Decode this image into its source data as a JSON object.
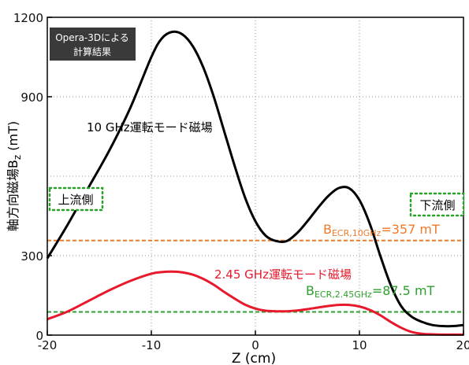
{
  "chart_data": {
    "type": "line",
    "xlabel": "Z (cm)",
    "ylabel": "軸方向磁場B",
    "ylabel_sub": "z",
    "ylabel_unit": " (mT)",
    "xlim": [
      -20,
      20
    ],
    "ylim": [
      0,
      1200
    ],
    "xticks": [
      "-20",
      "-10",
      "0",
      "10",
      "20"
    ],
    "yticks": [
      "0",
      "300",
      "900",
      "1200"
    ],
    "grid": true,
    "series": [
      {
        "name": "10 GHz運転モード磁場",
        "color": "#000000",
        "x": [
          -20,
          -18,
          -16,
          -14,
          -12,
          -10,
          -9,
          -8,
          -7,
          -6,
          -5,
          -4,
          -3,
          -2,
          -1,
          0,
          1,
          2,
          3,
          4,
          5,
          6,
          7,
          8,
          9,
          10,
          11,
          12,
          13,
          14,
          15,
          16,
          17,
          18,
          19,
          20
        ],
        "y": [
          290,
          420,
          560,
          700,
          860,
          1050,
          1120,
          1145,
          1135,
          1090,
          1010,
          900,
          770,
          640,
          520,
          430,
          375,
          355,
          355,
          385,
          430,
          480,
          525,
          555,
          555,
          510,
          420,
          300,
          190,
          110,
          70,
          50,
          38,
          34,
          34,
          38
        ]
      },
      {
        "name": "2.45 GHz運転モード磁場",
        "color": "#e8192c",
        "x": [
          -20,
          -18,
          -16,
          -14,
          -12,
          -10,
          -9,
          -8,
          -7,
          -6,
          -5,
          -4,
          -3,
          -2,
          -1,
          0,
          1,
          2,
          3,
          4,
          5,
          6,
          7,
          8,
          9,
          10,
          11,
          12,
          13,
          14,
          15,
          16,
          17,
          18,
          19,
          20
        ],
        "y": [
          60,
          90,
          130,
          170,
          205,
          232,
          238,
          240,
          237,
          228,
          212,
          190,
          163,
          138,
          115,
          100,
          92,
          90,
          90,
          93,
          98,
          104,
          110,
          114,
          114,
          108,
          95,
          75,
          50,
          28,
          12,
          5,
          3,
          2,
          2,
          2
        ]
      }
    ],
    "reference_lines": [
      {
        "label": "B",
        "sub": "ECR,10GHz",
        "suffix": "=357 mT",
        "y": 357,
        "color": "#f07a2a"
      },
      {
        "label": "B",
        "sub": "ECR,2.45GHz",
        "suffix": "=87.5 mT",
        "y": 87.5,
        "color": "#2ca02c"
      }
    ],
    "annotations": {
      "box_line1": "Opera-3Dによる",
      "box_line2": "計算結果",
      "upstream": "上流側",
      "downstream": "下流側"
    }
  }
}
